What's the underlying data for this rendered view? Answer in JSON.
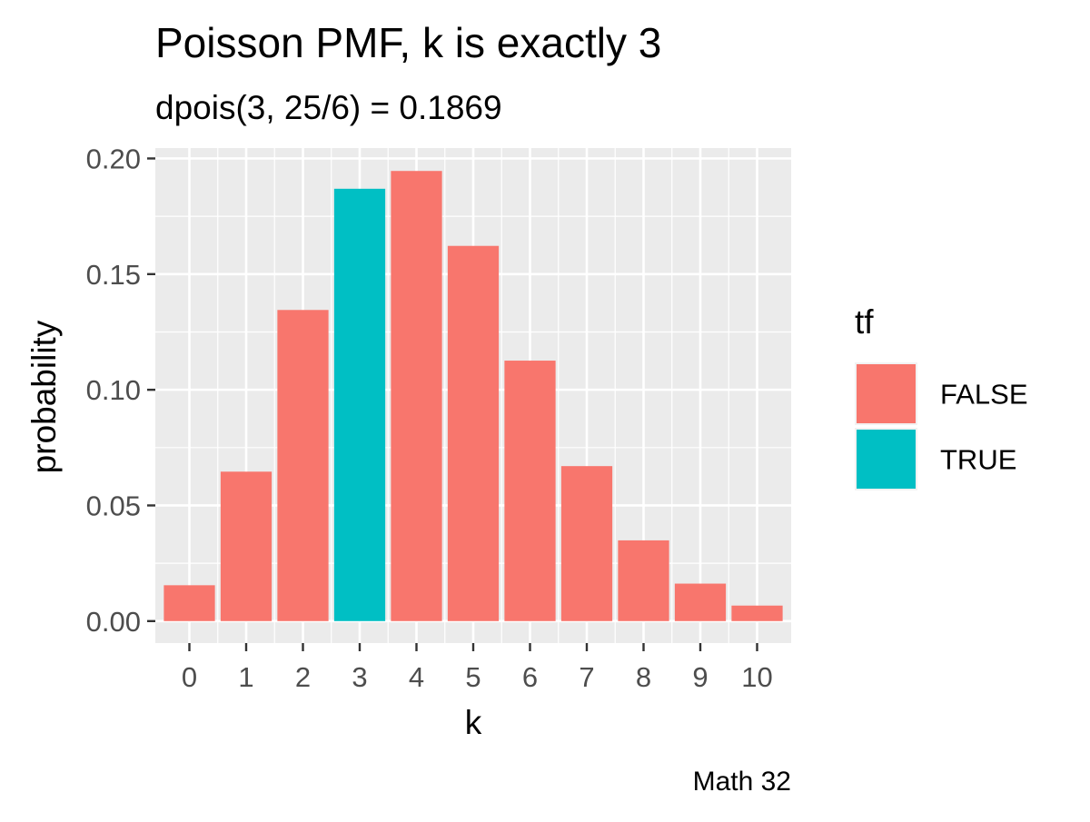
{
  "chart_data": {
    "type": "bar",
    "title": "Poisson PMF, k is exactly 3",
    "subtitle": "dpois(3, 25/6) = 0.1869",
    "caption": "Math 32",
    "xlabel": "k",
    "ylabel": "probability",
    "categories": [
      "0",
      "1",
      "2",
      "3",
      "4",
      "5",
      "6",
      "7",
      "8",
      "9",
      "10"
    ],
    "values": [
      0.0155,
      0.0646,
      0.1345,
      0.1869,
      0.1946,
      0.1622,
      0.1126,
      0.067,
      0.0349,
      0.0162,
      0.0067
    ],
    "fill_group": [
      "FALSE",
      "FALSE",
      "FALSE",
      "TRUE",
      "FALSE",
      "FALSE",
      "FALSE",
      "FALSE",
      "FALSE",
      "FALSE",
      "FALSE"
    ],
    "ylim": [
      -0.0095,
      0.2045
    ],
    "y_ticks": [
      "0.00",
      "0.05",
      "0.10",
      "0.15",
      "0.20"
    ],
    "y_tick_values": [
      0,
      0.05,
      0.1,
      0.15,
      0.2
    ],
    "grid": true,
    "legend": {
      "position": "right",
      "title": "tf",
      "entries": [
        {
          "label": "FALSE",
          "color": "#F8766D"
        },
        {
          "label": "TRUE",
          "color": "#00BFC4"
        }
      ]
    },
    "colors": {
      "panel_background": "#EBEBEB",
      "grid": "#FFFFFF",
      "FALSE": "#F8766D",
      "TRUE": "#00BFC4",
      "tick_text": "#4D4D4D",
      "text": "#000000"
    }
  }
}
